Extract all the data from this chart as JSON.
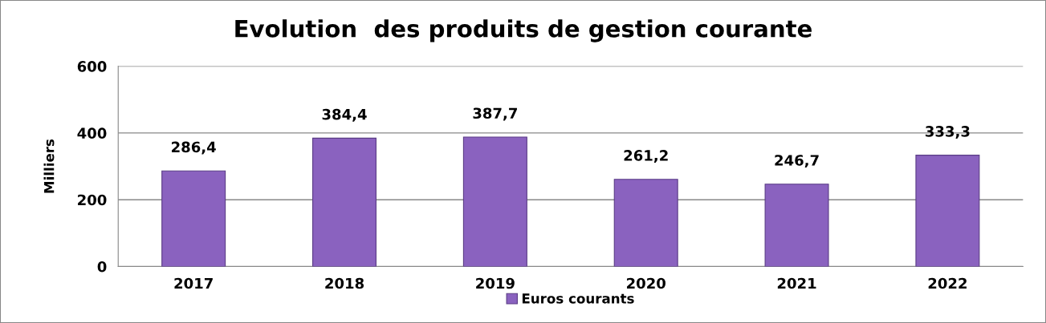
{
  "chart_data": {
    "type": "bar",
    "title": "Evolution  des produits de gestion courante",
    "ylabel": "Milliers",
    "categories": [
      "2017",
      "2018",
      "2019",
      "2020",
      "2021",
      "2022"
    ],
    "series": [
      {
        "name": "Euros courants",
        "color": "#8a62bf",
        "values": [
          286.4,
          384.4,
          387.7,
          261.2,
          246.7,
          333.3
        ],
        "value_labels": [
          "286,4",
          "384,4",
          "387,7",
          "261,2",
          "246,7",
          "333,3"
        ]
      }
    ],
    "ylim": [
      0,
      600
    ],
    "yticks": [
      0,
      200,
      400,
      600
    ],
    "grid": "y",
    "legend": "bottom"
  }
}
